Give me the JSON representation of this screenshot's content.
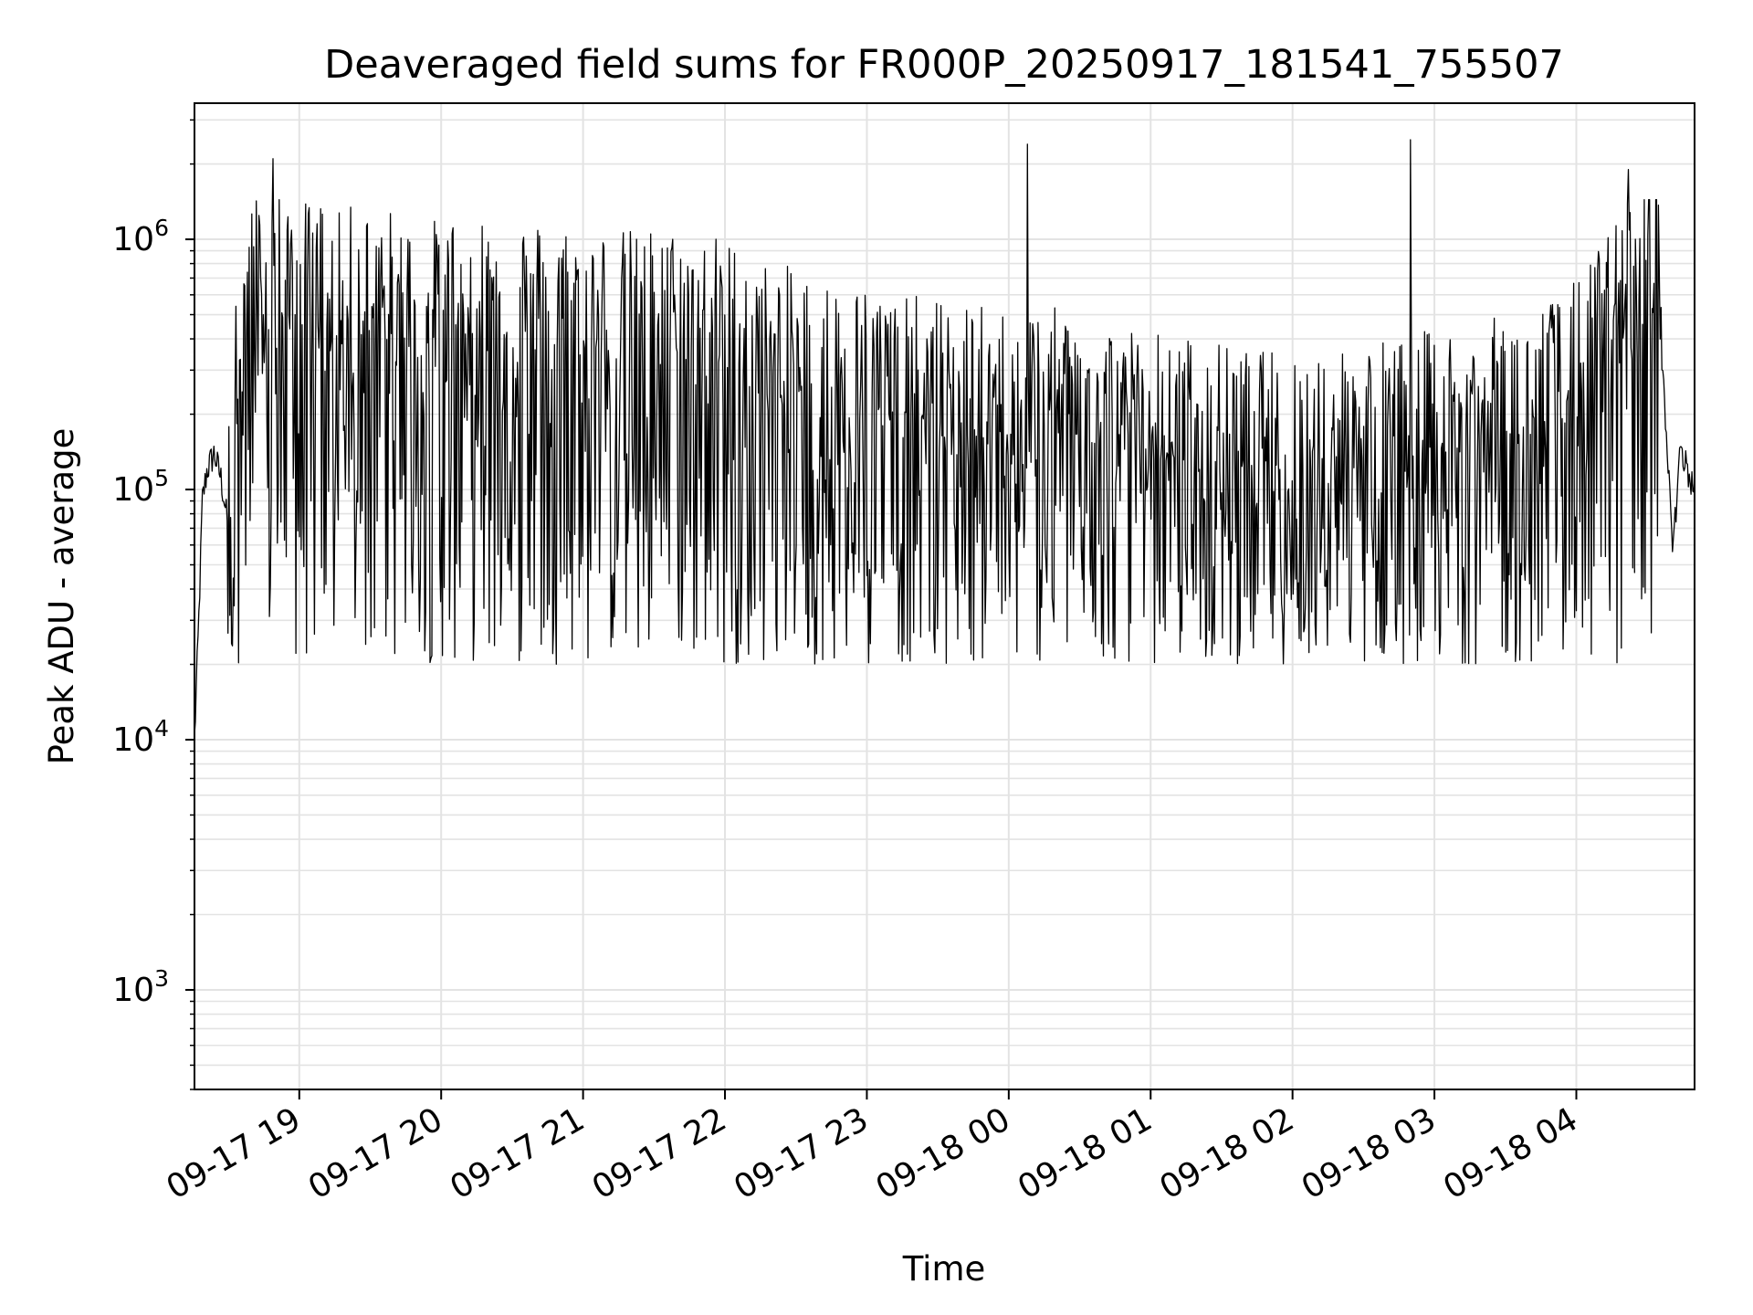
{
  "chart_data": {
    "type": "line",
    "title": "Deaveraged field sums for FR000P_20250917_181541_755507",
    "xlabel": "Time",
    "ylabel": "Peak ADU - average",
    "yscale": "log",
    "ylim": [
      400,
      3500000
    ],
    "xlim": [
      "2025-09-17T18:15:41",
      "2025-09-18T04:50:00"
    ],
    "grid": true,
    "line_color": "#000000",
    "x_ticks": [
      {
        "label": "09-17 19",
        "time": "2025-09-17T19:00:00"
      },
      {
        "label": "09-17 20",
        "time": "2025-09-17T20:00:00"
      },
      {
        "label": "09-17 21",
        "time": "2025-09-17T21:00:00"
      },
      {
        "label": "09-17 22",
        "time": "2025-09-17T22:00:00"
      },
      {
        "label": "09-17 23",
        "time": "2025-09-17T23:00:00"
      },
      {
        "label": "09-18 00",
        "time": "2025-09-18T00:00:00"
      },
      {
        "label": "09-18 01",
        "time": "2025-09-18T01:00:00"
      },
      {
        "label": "09-18 02",
        "time": "2025-09-18T02:00:00"
      },
      {
        "label": "09-18 03",
        "time": "2025-09-18T03:00:00"
      },
      {
        "label": "09-18 04",
        "time": "2025-09-18T04:00:00"
      }
    ],
    "y_ticks": [
      {
        "base": "10",
        "exp": "3",
        "value": 1000
      },
      {
        "base": "10",
        "exp": "4",
        "value": 10000
      },
      {
        "base": "10",
        "exp": "5",
        "value": 100000
      },
      {
        "base": "10",
        "exp": "6",
        "value": 1000000
      }
    ],
    "series": [
      {
        "x": [
          "2025-09-17T18:15:41",
          "2025-09-17T18:17:30",
          "2025-09-17T18:19:00",
          "2025-09-17T18:21:00",
          "2025-09-17T18:24:00",
          "2025-09-17T18:27:00",
          "2025-09-17T18:30:00",
          "2025-09-17T18:33:00",
          "2025-09-17T18:36:00",
          "2025-09-17T18:40:00",
          "2025-09-17T18:45:00",
          "2025-09-17T18:50:00",
          "2025-09-17T18:55:00",
          "2025-09-17T19:00:00",
          "2025-09-17T19:05:00",
          "2025-09-17T19:10:00",
          "2025-09-17T19:15:00",
          "2025-09-17T19:20:00",
          "2025-09-17T19:30:00",
          "2025-09-17T19:40:00",
          "2025-09-17T19:50:00",
          "2025-09-17T20:00:00",
          "2025-09-17T20:15:00",
          "2025-09-17T20:30:00",
          "2025-09-17T20:45:00",
          "2025-09-17T21:00:00",
          "2025-09-17T21:15:00",
          "2025-09-17T21:30:00",
          "2025-09-17T21:45:00",
          "2025-09-17T22:00:00",
          "2025-09-17T22:15:00",
          "2025-09-17T22:30:00",
          "2025-09-17T22:45:00",
          "2025-09-17T23:00:00",
          "2025-09-17T23:15:00",
          "2025-09-17T23:30:00",
          "2025-09-17T23:45:00",
          "2025-09-18T00:00:00",
          "2025-09-18T00:15:00",
          "2025-09-18T00:30:00",
          "2025-09-18T00:45:00",
          "2025-09-18T01:00:00",
          "2025-09-18T01:15:00",
          "2025-09-18T01:30:00",
          "2025-09-18T01:45:00",
          "2025-09-18T02:00:00",
          "2025-09-18T02:15:00",
          "2025-09-18T02:30:00",
          "2025-09-18T02:45:00",
          "2025-09-18T03:00:00",
          "2025-09-18T03:15:00",
          "2025-09-18T03:30:00",
          "2025-09-18T03:45:00",
          "2025-09-18T04:00:00",
          "2025-09-18T04:10:00",
          "2025-09-18T04:20:00",
          "2025-09-18T04:30:00",
          "2025-09-18T04:35:00",
          "2025-09-18T04:38:00",
          "2025-09-18T04:41:00",
          "2025-09-18T04:44:00",
          "2025-09-18T04:47:00",
          "2025-09-18T04:50:00"
        ],
        "y": [
          10000,
          30000,
          90000,
          120000,
          140000,
          110000,
          70000,
          200000,
          400000,
          600000,
          500000,
          700000,
          450000,
          600000,
          500000,
          550000,
          450000,
          500000,
          500000,
          480000,
          420000,
          450000,
          470000,
          460000,
          430000,
          420000,
          400000,
          410000,
          390000,
          380000,
          300000,
          280000,
          250000,
          240000,
          220000,
          210000,
          200000,
          190000,
          200000,
          180000,
          170000,
          160000,
          150000,
          140000,
          130000,
          135000,
          140000,
          145000,
          150000,
          160000,
          170000,
          180000,
          200000,
          250000,
          350000,
          500000,
          700000,
          600000,
          150000,
          60000,
          150000,
          120000,
          100000
        ],
        "spikes": [
          {
            "x": "2025-09-18T00:08:00",
            "y": 2400000
          },
          {
            "x": "2025-09-18T02:50:00",
            "y": 2500000
          },
          {
            "x": "2025-09-17T18:49:00",
            "y": 2100000
          },
          {
            "x": "2025-09-18T04:22:00",
            "y": 1900000
          }
        ],
        "fluctuation_low": 20000,
        "fluctuation_high": 900000
      }
    ]
  }
}
